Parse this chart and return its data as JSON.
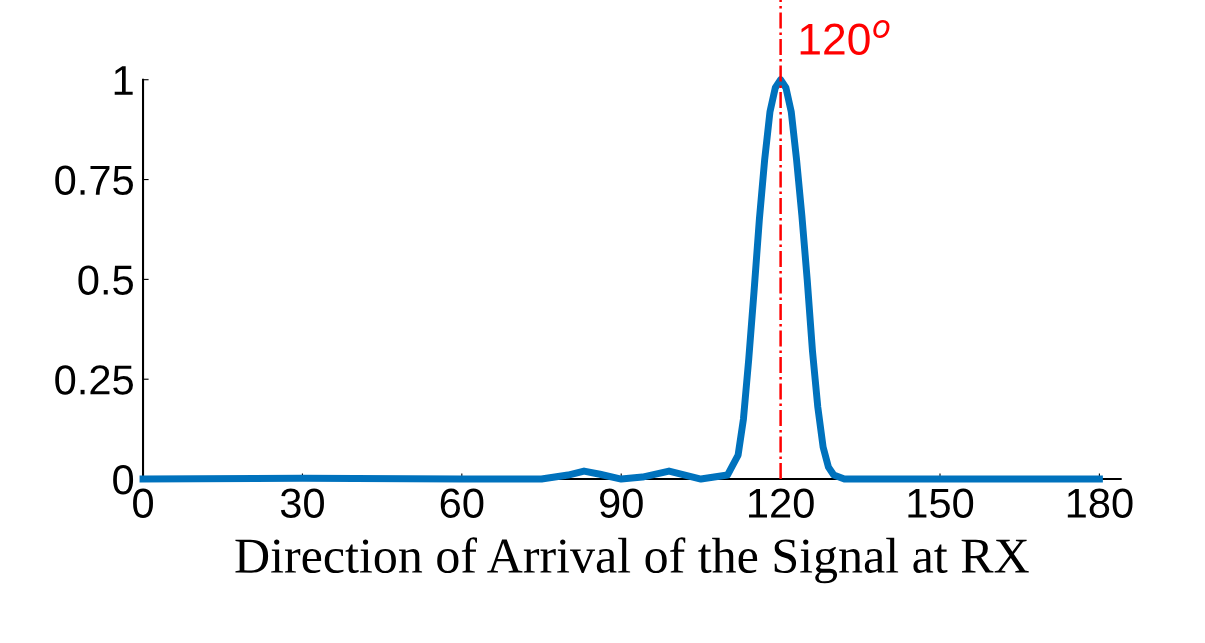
{
  "chart_data": {
    "type": "line",
    "xlabel": "Direction of Arrival of the Signal at RX",
    "x": [
      0,
      30,
      60,
      75,
      80,
      83,
      86,
      90,
      94,
      99,
      102,
      105,
      110,
      112,
      113,
      114,
      115,
      116,
      117,
      118,
      119,
      120,
      121,
      122,
      123,
      124,
      125,
      126,
      127,
      128,
      129,
      130,
      132,
      150,
      180
    ],
    "series": [
      {
        "color": "#0072bd",
        "values": [
          0,
          0.002,
          0,
          0,
          0.01,
          0.02,
          0.012,
          0,
          0.005,
          0.02,
          0.01,
          0,
          0.01,
          0.06,
          0.15,
          0.3,
          0.47,
          0.65,
          0.8,
          0.92,
          0.98,
          1,
          0.98,
          0.92,
          0.8,
          0.66,
          0.5,
          0.32,
          0.18,
          0.08,
          0.03,
          0.01,
          0,
          0,
          0
        ]
      }
    ],
    "xlim": [
      0,
      184
    ],
    "ylim": [
      0,
      1
    ],
    "xticks": [
      0,
      30,
      60,
      90,
      120,
      150,
      180
    ],
    "yticks": [
      0,
      {
        "value": 0.25,
        "label": "0.25"
      },
      {
        "value": 0.5,
        "label": "0.5"
      },
      {
        "value": 0.75,
        "label": "0.75"
      },
      1
    ],
    "ref_lines": [
      {
        "axis": "x",
        "value": 120,
        "label": "120$^{o}$",
        "color": "#ff0000",
        "line_style": "dashdot"
      }
    ],
    "grid": false,
    "legend": false,
    "marker": "none",
    "line_style": "solid"
  }
}
